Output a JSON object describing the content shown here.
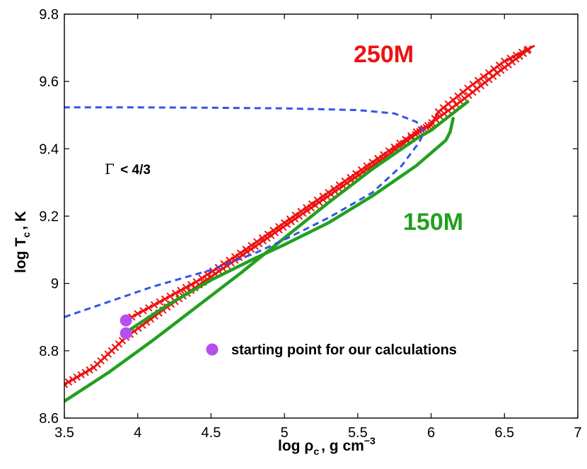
{
  "chart_data": {
    "type": "line",
    "xlabel_main": "log ρ",
    "xlabel_sub": "c",
    "xlabel_unit": ", g cm",
    "xlabel_sup": "−3",
    "ylabel_main": "log T",
    "ylabel_sub": "c",
    "ylabel_unit": ", K",
    "xlim": [
      3.5,
      7
    ],
    "ylim": [
      8.6,
      9.8
    ],
    "xticks": [
      "3.5",
      "4",
      "4.5",
      "5",
      "5.5",
      "6",
      "6.5",
      "7"
    ],
    "xtick_values": [
      3.5,
      4,
      4.5,
      5,
      5.5,
      6,
      6.5,
      7
    ],
    "yticks": [
      "8.6",
      "8.8",
      "9",
      "9.2",
      "9.4",
      "9.6",
      "9.8"
    ],
    "ytick_values": [
      8.6,
      8.8,
      9.0,
      9.2,
      9.4,
      9.6,
      9.8
    ],
    "grid": false,
    "colors": {
      "m250": "#ee1111",
      "m150": "#22a01e",
      "gamma_boundary": "#3355e6",
      "start_point": "#b44ff0"
    },
    "annotations": {
      "m250": "250M",
      "m150": "150M",
      "gamma_text": "< 4/3",
      "gamma_symbol": "Γ",
      "legend_text": "starting point for our calculations"
    },
    "series": [
      {
        "key": "m250",
        "style": "line-cross",
        "segments": [
          [
            [
              3.5,
              8.7
            ],
            [
              3.7,
              8.75
            ],
            [
              3.92,
              8.84
            ],
            [
              4.2,
              8.93
            ],
            [
              4.5,
              9.02
            ],
            [
              4.8,
              9.11
            ],
            [
              5.1,
              9.2
            ],
            [
              5.4,
              9.29
            ],
            [
              5.7,
              9.38
            ],
            [
              5.95,
              9.46
            ],
            [
              6.2,
              9.54
            ],
            [
              6.45,
              9.625
            ],
            [
              6.68,
              9.7
            ]
          ],
          [
            [
              3.92,
              8.89
            ],
            [
              4.0,
              8.91
            ],
            [
              4.15,
              8.945
            ],
            [
              4.4,
              9.005
            ],
            [
              4.7,
              9.09
            ],
            [
              5.0,
              9.18
            ],
            [
              5.3,
              9.27
            ],
            [
              5.6,
              9.36
            ],
            [
              5.9,
              9.45
            ],
            [
              6.0,
              9.47
            ],
            [
              6.05,
              9.51
            ],
            [
              6.25,
              9.58
            ],
            [
              6.5,
              9.66
            ],
            [
              6.7,
              9.705
            ]
          ]
        ]
      },
      {
        "key": "m150",
        "style": "line",
        "segments": [
          [
            [
              3.5,
              8.65
            ],
            [
              3.8,
              8.735
            ],
            [
              4.1,
              8.83
            ],
            [
              4.4,
              8.93
            ],
            [
              4.7,
              9.03
            ],
            [
              5.0,
              9.135
            ],
            [
              5.3,
              9.24
            ],
            [
              5.6,
              9.34
            ],
            [
              5.9,
              9.43
            ],
            [
              6.0,
              9.455
            ],
            [
              6.25,
              9.54
            ]
          ],
          [
            [
              3.92,
              8.855
            ],
            [
              4.2,
              8.935
            ],
            [
              4.5,
              9.01
            ],
            [
              4.8,
              9.075
            ],
            [
              5.0,
              9.115
            ],
            [
              5.3,
              9.18
            ],
            [
              5.6,
              9.26
            ],
            [
              5.9,
              9.35
            ],
            [
              6.1,
              9.425
            ],
            [
              6.13,
              9.45
            ],
            [
              6.15,
              9.49
            ]
          ]
        ]
      },
      {
        "key": "gamma_boundary",
        "style": "dashed",
        "segments": [
          [
            [
              3.5,
              8.9
            ],
            [
              3.8,
              8.945
            ],
            [
              4.1,
              8.99
            ],
            [
              4.5,
              9.04
            ],
            [
              4.8,
              9.09
            ],
            [
              5.0,
              9.13
            ],
            [
              5.3,
              9.195
            ],
            [
              5.6,
              9.27
            ],
            [
              5.8,
              9.35
            ],
            [
              5.92,
              9.42
            ],
            [
              5.95,
              9.45
            ],
            [
              5.9,
              9.48
            ],
            [
              5.75,
              9.505
            ],
            [
              5.5,
              9.515
            ],
            [
              5.0,
              9.52
            ],
            [
              4.5,
              9.522
            ],
            [
              4.0,
              9.523
            ],
            [
              3.5,
              9.523
            ]
          ]
        ]
      }
    ],
    "start_points": [
      {
        "x": 3.92,
        "y": 8.89
      },
      {
        "x": 3.92,
        "y": 8.852
      }
    ]
  }
}
